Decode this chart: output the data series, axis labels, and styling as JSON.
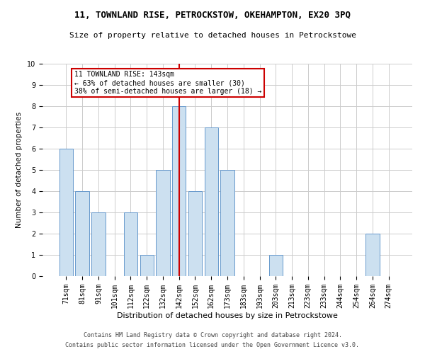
{
  "title": "11, TOWNLAND RISE, PETROCKSTOW, OKEHAMPTON, EX20 3PQ",
  "subtitle": "Size of property relative to detached houses in Petrockstowe",
  "xlabel": "Distribution of detached houses by size in Petrockstowe",
  "ylabel": "Number of detached properties",
  "footnote1": "Contains HM Land Registry data © Crown copyright and database right 2024.",
  "footnote2": "Contains public sector information licensed under the Open Government Licence v3.0.",
  "annotation_line1": "11 TOWNLAND RISE: 143sqm",
  "annotation_line2": "← 63% of detached houses are smaller (30)",
  "annotation_line3": "38% of semi-detached houses are larger (18) →",
  "bar_labels": [
    "71sqm",
    "81sqm",
    "91sqm",
    "101sqm",
    "112sqm",
    "122sqm",
    "132sqm",
    "142sqm",
    "152sqm",
    "162sqm",
    "173sqm",
    "183sqm",
    "193sqm",
    "203sqm",
    "213sqm",
    "223sqm",
    "233sqm",
    "244sqm",
    "254sqm",
    "264sqm",
    "274sqm"
  ],
  "bar_values": [
    6,
    4,
    3,
    0,
    3,
    1,
    5,
    8,
    4,
    7,
    5,
    0,
    0,
    1,
    0,
    0,
    0,
    0,
    0,
    2,
    0
  ],
  "bar_color": "#cce0f0",
  "bar_edgecolor": "#6699cc",
  "highlight_index": 7,
  "highlight_line_color": "#cc0000",
  "grid_color": "#cccccc",
  "bg_color": "#ffffff",
  "ylim": [
    0,
    10
  ],
  "yticks": [
    0,
    1,
    2,
    3,
    4,
    5,
    6,
    7,
    8,
    9,
    10
  ],
  "annotation_box_edgecolor": "#cc0000",
  "annotation_box_facecolor": "#ffffff",
  "title_fontsize": 9,
  "subtitle_fontsize": 8,
  "xlabel_fontsize": 8,
  "ylabel_fontsize": 7.5,
  "tick_fontsize": 7,
  "annotation_fontsize": 7,
  "footnote_fontsize": 6
}
